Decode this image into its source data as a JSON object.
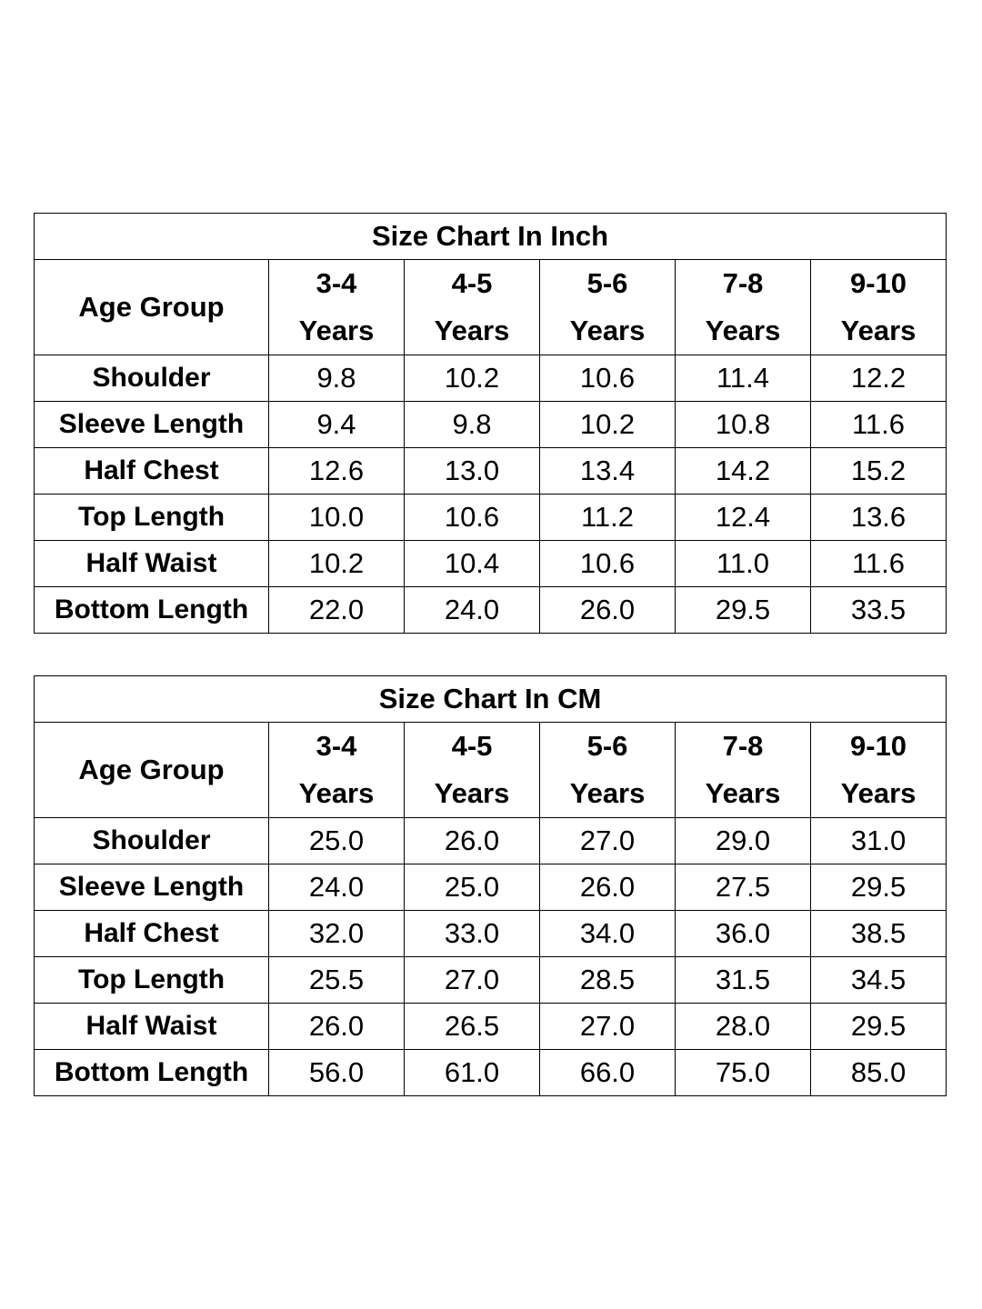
{
  "tables": [
    {
      "title": "Size Chart In Inch",
      "corner": "Age Group",
      "columns": [
        {
          "range": "3-4",
          "unit": "Years"
        },
        {
          "range": "4-5",
          "unit": "Years"
        },
        {
          "range": "5-6",
          "unit": "Years"
        },
        {
          "range": "7-8",
          "unit": "Years"
        },
        {
          "range": "9-10",
          "unit": "Years"
        }
      ],
      "rows": [
        {
          "label": "Shoulder",
          "values": [
            "9.8",
            "10.2",
            "10.6",
            "11.4",
            "12.2"
          ]
        },
        {
          "label": "Sleeve Length",
          "values": [
            "9.4",
            "9.8",
            "10.2",
            "10.8",
            "11.6"
          ]
        },
        {
          "label": "Half Chest",
          "values": [
            "12.6",
            "13.0",
            "13.4",
            "14.2",
            "15.2"
          ]
        },
        {
          "label": "Top Length",
          "values": [
            "10.0",
            "10.6",
            "11.2",
            "12.4",
            "13.6"
          ]
        },
        {
          "label": "Half Waist",
          "values": [
            "10.2",
            "10.4",
            "10.6",
            "11.0",
            "11.6"
          ]
        },
        {
          "label": "Bottom Length",
          "values": [
            "22.0",
            "24.0",
            "26.0",
            "29.5",
            "33.5"
          ]
        }
      ]
    },
    {
      "title": "Size Chart In CM",
      "corner": "Age Group",
      "columns": [
        {
          "range": "3-4",
          "unit": "Years"
        },
        {
          "range": "4-5",
          "unit": "Years"
        },
        {
          "range": "5-6",
          "unit": "Years"
        },
        {
          "range": "7-8",
          "unit": "Years"
        },
        {
          "range": "9-10",
          "unit": "Years"
        }
      ],
      "rows": [
        {
          "label": "Shoulder",
          "values": [
            "25.0",
            "26.0",
            "27.0",
            "29.0",
            "31.0"
          ]
        },
        {
          "label": "Sleeve Length",
          "values": [
            "24.0",
            "25.0",
            "26.0",
            "27.5",
            "29.5"
          ]
        },
        {
          "label": "Half Chest",
          "values": [
            "32.0",
            "33.0",
            "34.0",
            "36.0",
            "38.5"
          ]
        },
        {
          "label": "Top Length",
          "values": [
            "25.5",
            "27.0",
            "28.5",
            "31.5",
            "34.5"
          ]
        },
        {
          "label": "Half Waist",
          "values": [
            "26.0",
            "26.5",
            "27.0",
            "28.0",
            "29.5"
          ]
        },
        {
          "label": "Bottom Length",
          "values": [
            "56.0",
            "61.0",
            "66.0",
            "75.0",
            "85.0"
          ]
        }
      ]
    }
  ]
}
